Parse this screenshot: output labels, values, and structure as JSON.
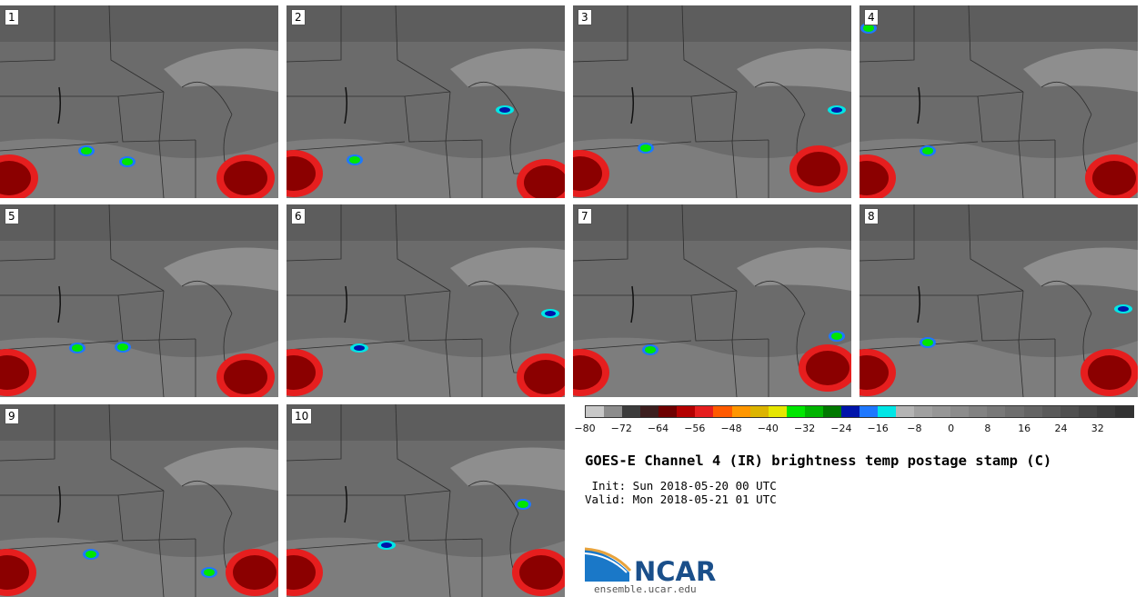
{
  "panels": [
    {
      "label": "1"
    },
    {
      "label": "2"
    },
    {
      "label": "3"
    },
    {
      "label": "4"
    },
    {
      "label": "5"
    },
    {
      "label": "6"
    },
    {
      "label": "7"
    },
    {
      "label": "8"
    },
    {
      "label": "9"
    },
    {
      "label": "10"
    }
  ],
  "colorbar": {
    "colors": [
      "#c8c8c8",
      "#8c8c8c",
      "#3c3c3c",
      "#3c1e1e",
      "#6e0000",
      "#b40000",
      "#e61e1e",
      "#ff5a00",
      "#ff9600",
      "#dcb400",
      "#e6e600",
      "#00e600",
      "#00b400",
      "#007800",
      "#0014aa",
      "#1e78ff",
      "#00e6e6",
      "#b4b4b4",
      "#a0a0a0",
      "#969696",
      "#8c8c8c",
      "#828282",
      "#787878",
      "#6e6e6e",
      "#646464",
      "#5a5a5a",
      "#505050",
      "#464646",
      "#3c3c3c",
      "#323232"
    ],
    "tick_labels": [
      "−80",
      "−72",
      "−64",
      "−56",
      "−48",
      "−40",
      "−32",
      "−24",
      "−16",
      "−8",
      "0",
      "8",
      "16",
      "24",
      "32"
    ]
  },
  "title": "GOES-E Channel 4 (IR) brightness temp postage stamp (C)",
  "init_text": " Init: Sun 2018-05-20 00 UTC",
  "valid_text": "Valid: Mon 2018-05-21 01 UTC",
  "logo": {
    "text": "NCAR",
    "url": "ensemble.ucar.edu",
    "colors": {
      "blue": "#1a4f8a",
      "orange": "#e8a33c"
    }
  }
}
